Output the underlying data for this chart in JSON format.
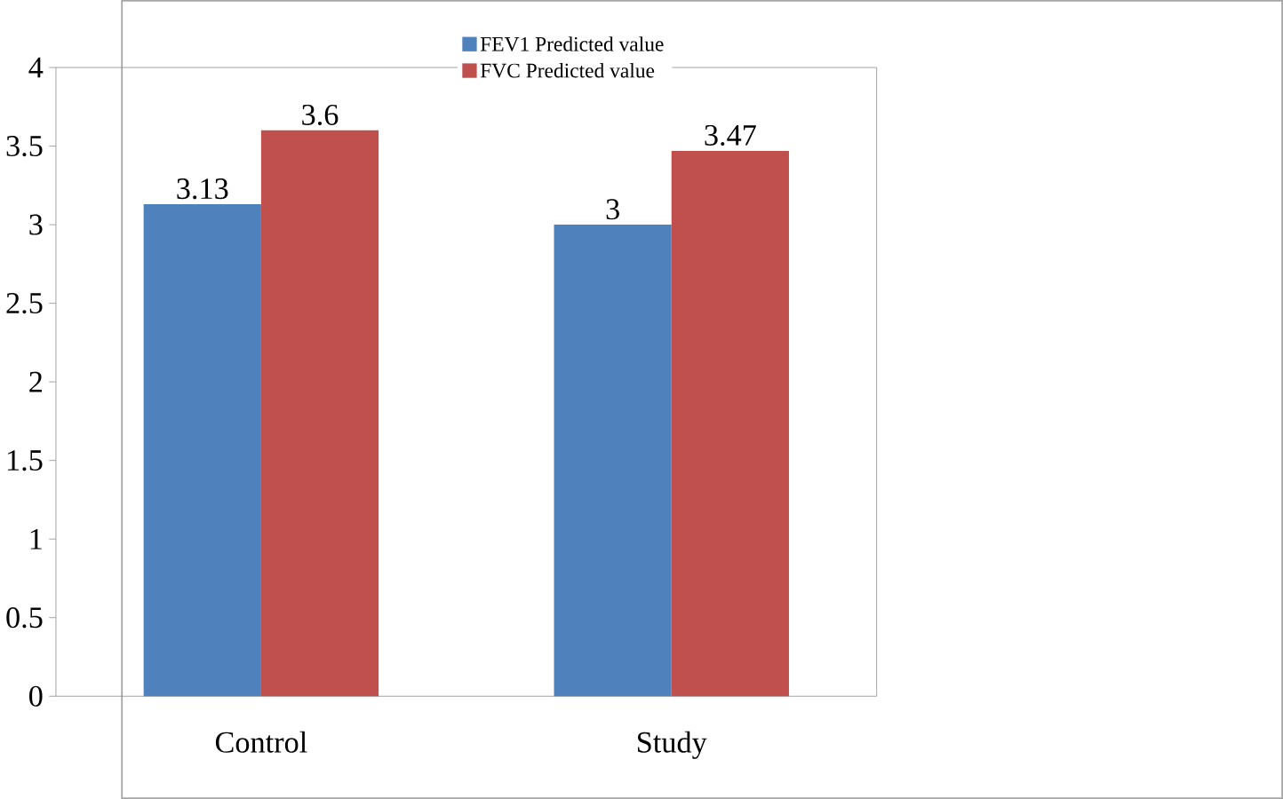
{
  "chart_data": {
    "type": "bar",
    "categories": [
      "Control",
      "Study"
    ],
    "series": [
      {
        "name": "FEV1 Predicted value",
        "color": "#4f81bd",
        "values": [
          3.13,
          3
        ]
      },
      {
        "name": "FVC Predicted value",
        "color": "#c0504d",
        "values": [
          3.6,
          3.47
        ]
      }
    ],
    "ylim": [
      0,
      4
    ],
    "yticks": [
      0,
      0.5,
      1,
      1.5,
      2,
      2.5,
      3,
      3.5,
      4
    ],
    "data_labels": true,
    "legend": "top",
    "grid": false
  }
}
